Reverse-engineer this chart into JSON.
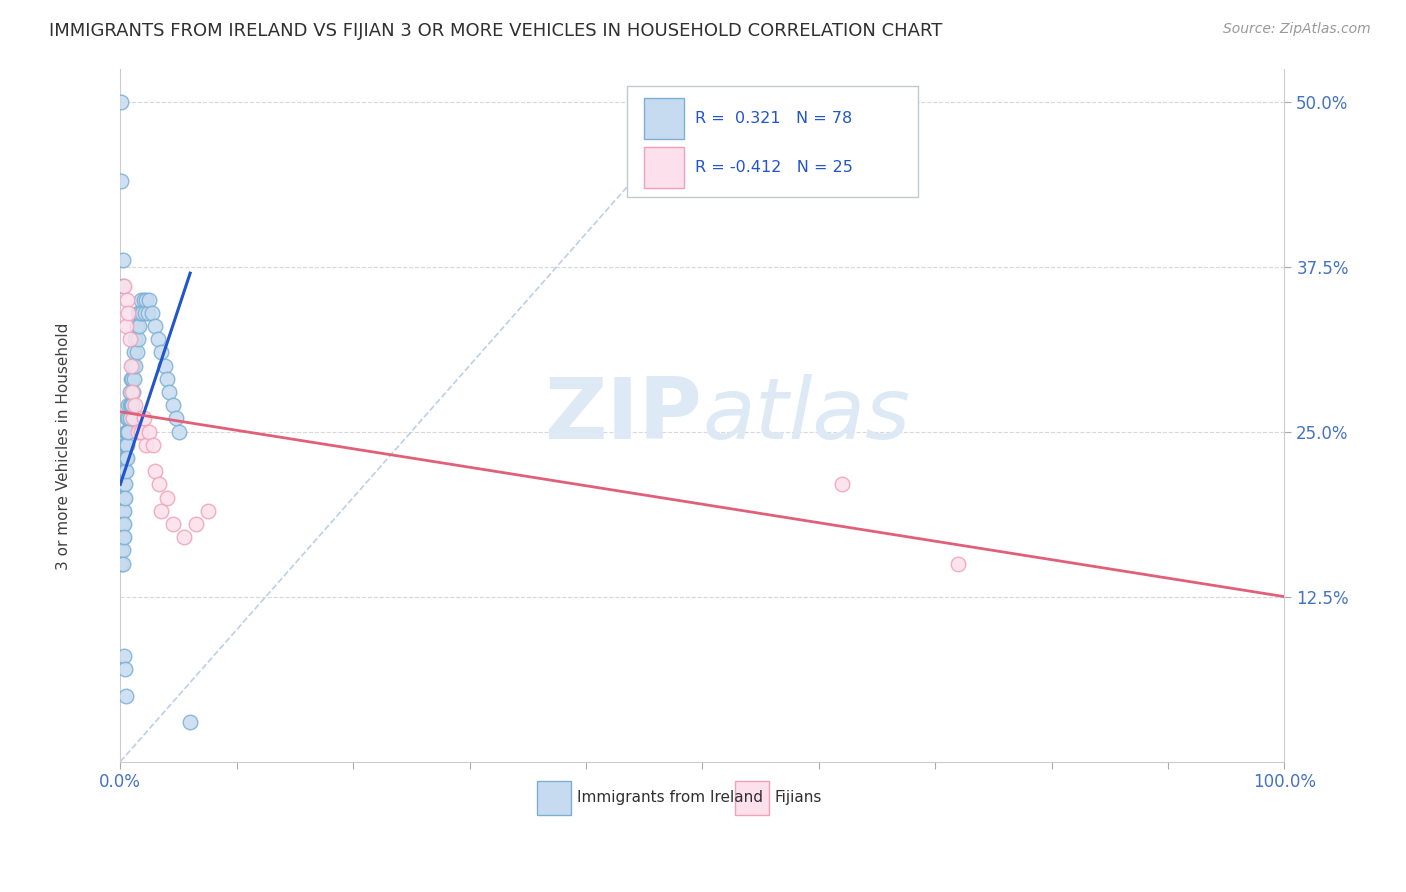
{
  "title": "IMMIGRANTS FROM IRELAND VS FIJIAN 3 OR MORE VEHICLES IN HOUSEHOLD CORRELATION CHART",
  "source": "Source: ZipAtlas.com",
  "ylabel": "3 or more Vehicles in Household",
  "yticks": [
    0.125,
    0.25,
    0.375,
    0.5
  ],
  "ytick_labels": [
    "12.5%",
    "25.0%",
    "37.5%",
    "50.0%"
  ],
  "legend_r_blue": "R =  0.321",
  "legend_n_blue": "N = 78",
  "legend_r_pink": "R = -0.412",
  "legend_n_pink": "N = 25",
  "legend_label_blue": "Immigrants from Ireland",
  "legend_label_pink": "Fijians",
  "blue_color": "#7bafd4",
  "pink_color": "#f4a0b5",
  "blue_face": "#c6dbef",
  "pink_face": "#fce0ec",
  "axis_label_color": "#4472c4",
  "blue_scatter_x": [
    0.001,
    0.001,
    0.001,
    0.001,
    0.001,
    0.002,
    0.002,
    0.002,
    0.002,
    0.002,
    0.002,
    0.003,
    0.003,
    0.003,
    0.003,
    0.003,
    0.003,
    0.004,
    0.004,
    0.004,
    0.004,
    0.004,
    0.005,
    0.005,
    0.005,
    0.005,
    0.006,
    0.006,
    0.006,
    0.006,
    0.007,
    0.007,
    0.007,
    0.008,
    0.008,
    0.008,
    0.009,
    0.009,
    0.01,
    0.01,
    0.01,
    0.011,
    0.011,
    0.012,
    0.012,
    0.013,
    0.013,
    0.014,
    0.014,
    0.015,
    0.015,
    0.016,
    0.017,
    0.018,
    0.019,
    0.02,
    0.021,
    0.022,
    0.024,
    0.025,
    0.027,
    0.03,
    0.032,
    0.035,
    0.038,
    0.04,
    0.042,
    0.045,
    0.048,
    0.05,
    0.001,
    0.001,
    0.002,
    0.002,
    0.003,
    0.004,
    0.005,
    0.06
  ],
  "blue_scatter_y": [
    0.18,
    0.19,
    0.17,
    0.16,
    0.15,
    0.2,
    0.19,
    0.18,
    0.17,
    0.16,
    0.15,
    0.22,
    0.21,
    0.2,
    0.19,
    0.18,
    0.17,
    0.24,
    0.23,
    0.22,
    0.21,
    0.2,
    0.25,
    0.24,
    0.23,
    0.22,
    0.26,
    0.25,
    0.24,
    0.23,
    0.27,
    0.26,
    0.25,
    0.28,
    0.27,
    0.26,
    0.29,
    0.27,
    0.3,
    0.29,
    0.27,
    0.3,
    0.28,
    0.31,
    0.29,
    0.32,
    0.3,
    0.33,
    0.31,
    0.34,
    0.32,
    0.33,
    0.34,
    0.35,
    0.34,
    0.35,
    0.34,
    0.35,
    0.34,
    0.35,
    0.34,
    0.33,
    0.32,
    0.31,
    0.3,
    0.29,
    0.28,
    0.27,
    0.26,
    0.25,
    0.44,
    0.5,
    0.38,
    0.36,
    0.08,
    0.07,
    0.05,
    0.03
  ],
  "pink_scatter_x": [
    0.003,
    0.005,
    0.006,
    0.007,
    0.008,
    0.009,
    0.01,
    0.011,
    0.013,
    0.015,
    0.018,
    0.02,
    0.022,
    0.025,
    0.028,
    0.03,
    0.033,
    0.035,
    0.04,
    0.045,
    0.055,
    0.065,
    0.075,
    0.62,
    0.72
  ],
  "pink_scatter_y": [
    0.36,
    0.33,
    0.35,
    0.34,
    0.32,
    0.3,
    0.28,
    0.26,
    0.27,
    0.25,
    0.25,
    0.26,
    0.24,
    0.25,
    0.24,
    0.22,
    0.21,
    0.19,
    0.2,
    0.18,
    0.17,
    0.18,
    0.19,
    0.21,
    0.15
  ],
  "blue_line_x": [
    0.0,
    0.06
  ],
  "blue_line_y": [
    0.21,
    0.37
  ],
  "pink_line_x": [
    0.0,
    1.0
  ],
  "pink_line_y": [
    0.265,
    0.125
  ],
  "ref_line_x": [
    0.0,
    0.5
  ],
  "ref_line_y": [
    0.0,
    0.5
  ],
  "xlim": [
    0.0,
    1.0
  ],
  "ylim": [
    0.0,
    0.525
  ],
  "xticks": [
    0.0,
    0.1,
    0.2,
    0.3,
    0.4,
    0.5,
    0.6,
    0.7,
    0.8,
    0.9,
    1.0
  ]
}
